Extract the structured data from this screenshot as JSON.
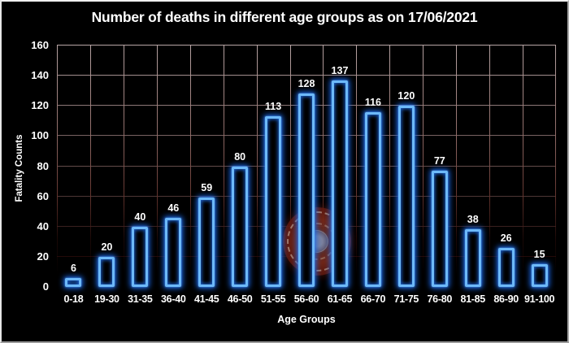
{
  "chart_data": {
    "type": "bar",
    "title": "Number of deaths in different age groups as on 17/06/2021",
    "categories": [
      "0-18",
      "19-30",
      "31-35",
      "36-40",
      "41-45",
      "46-50",
      "51-55",
      "56-60",
      "61-65",
      "66-70",
      "71-75",
      "76-80",
      "81-85",
      "86-90",
      "91-100"
    ],
    "values": [
      6,
      20,
      40,
      46,
      59,
      80,
      113,
      128,
      137,
      116,
      120,
      77,
      38,
      26,
      15
    ],
    "xlabel": "Age Groups",
    "ylabel": "Fatality Counts",
    "ylim": [
      0,
      160
    ],
    "ytick_step": 20,
    "yticks": [
      0,
      20,
      40,
      60,
      80,
      100,
      120,
      140,
      160
    ],
    "grid": true,
    "legend_position": "none",
    "bar_style": "hollow-neon-outline",
    "value_labels_shown": true
  },
  "colors": {
    "background": "#000000",
    "text": "#ffffff",
    "bar_outline": "#6db9f9",
    "bar_glow": "#1866e8",
    "grid_top": "#b7a4a4",
    "grid_bottom": "#240a09",
    "watermark_ring": "#7a2a1a",
    "watermark_core": "#8c96b4",
    "frame_border": "#c8c8c8"
  },
  "watermark": {
    "description": "circular official seal watermark"
  }
}
